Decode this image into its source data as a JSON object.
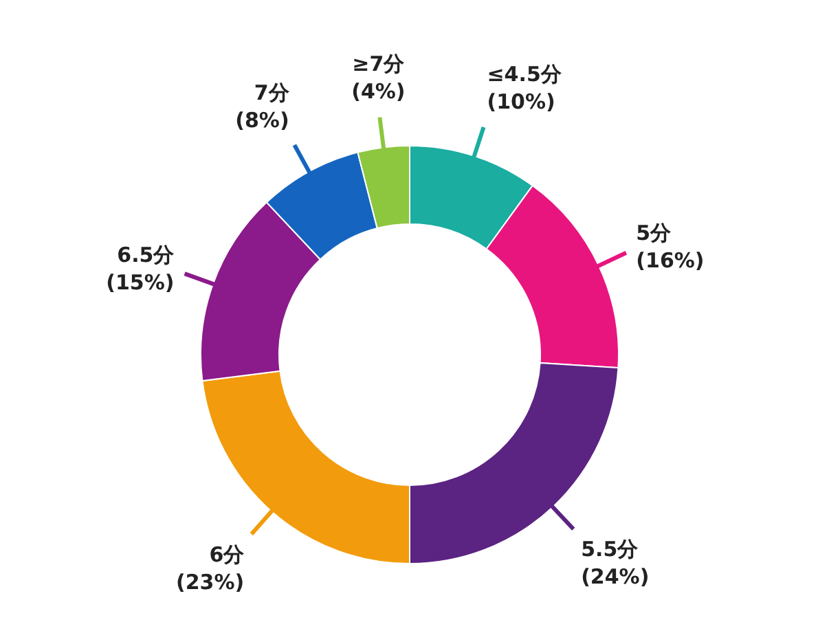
{
  "chart_data": {
    "type": "donut",
    "categories": [
      "≤4.5分",
      "5分",
      "5.5分",
      "6分",
      "6.5分",
      "7分",
      "≥7分"
    ],
    "values": [
      10,
      16,
      24,
      23,
      15,
      8,
      4
    ],
    "value_labels": [
      "(10%)",
      "(16%)",
      "(24%)",
      "(23%)",
      "(15%)",
      "(8%)",
      "(4%)"
    ],
    "colors": [
      "#1aada0",
      "#e8157f",
      "#5b2382",
      "#f29b0c",
      "#8b1a8a",
      "#1565c0",
      "#8dc63f"
    ],
    "legend": false
  }
}
